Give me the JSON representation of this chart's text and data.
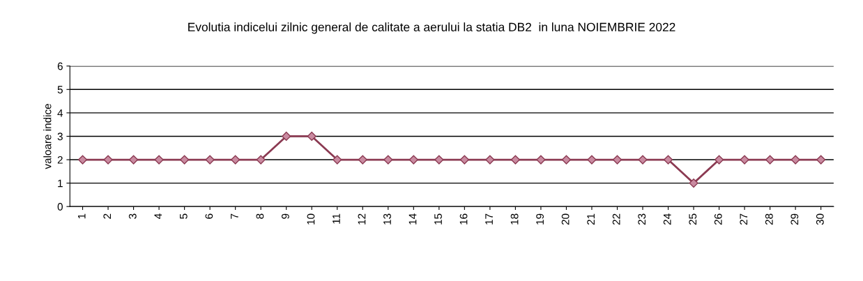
{
  "chart_data": {
    "type": "line",
    "title": "Evolutia indicelui zilnic general de calitate a aerului la statia DB2  in luna NOIEMBRIE 2022",
    "ylabel": "valoare indice",
    "categories": [
      "1",
      "2",
      "3",
      "4",
      "5",
      "6",
      "7",
      "8",
      "9",
      "10",
      "11",
      "12",
      "13",
      "14",
      "15",
      "16",
      "17",
      "18",
      "19",
      "20",
      "21",
      "22",
      "23",
      "24",
      "25",
      "26",
      "27",
      "28",
      "29",
      "30"
    ],
    "series": [
      {
        "color": "#8b3a52",
        "values": [
          2,
          2,
          2,
          2,
          2,
          2,
          2,
          2,
          3,
          3,
          2,
          2,
          2,
          2,
          2,
          2,
          2,
          2,
          2,
          2,
          2,
          2,
          2,
          2,
          1,
          2,
          2,
          2,
          2,
          2
        ]
      }
    ],
    "ylim": [
      0,
      6
    ],
    "yticks": [
      0,
      1,
      2,
      3,
      4,
      5,
      6
    ],
    "grid": "y",
    "marker": "diamond",
    "line_style": "solid"
  }
}
